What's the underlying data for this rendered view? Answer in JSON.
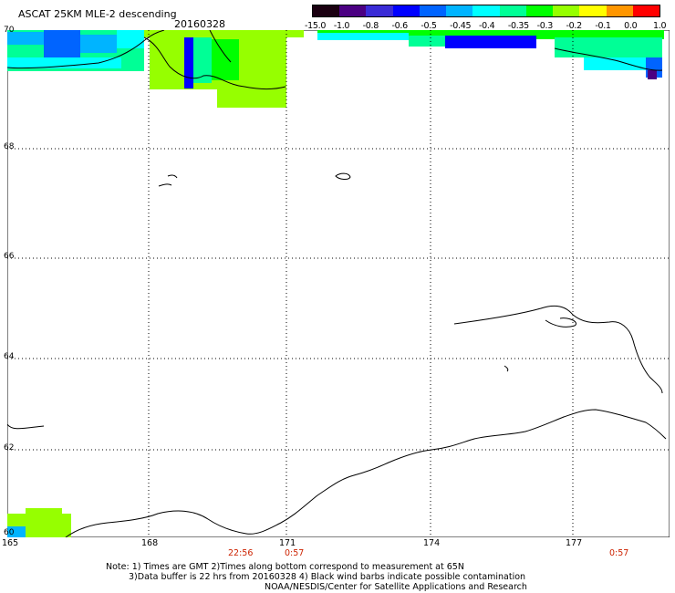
{
  "header": {
    "title": "ASCAT 25KM MLE-2 descending",
    "date": "20160328"
  },
  "legend": {
    "labels": [
      "-15.0",
      "-1.0",
      "-0.8",
      "-0.6",
      "-0.5",
      "-0.45",
      "-0.4",
      "-0.35",
      "-0.3",
      "-0.2",
      "-0.1",
      "0.0",
      "1.0"
    ],
    "colors": [
      "#1a0010",
      "#4b0082",
      "#3a2bd6",
      "#0000ff",
      "#0064ff",
      "#00b4ff",
      "#00ffff",
      "#00ff96",
      "#00ff00",
      "#96ff00",
      "#ffff00",
      "#ff9600",
      "#ff0000"
    ]
  },
  "map": {
    "lat_labels": [
      "70",
      "68",
      "66",
      "64",
      "62",
      "60"
    ],
    "lon_labels": [
      "165",
      "168",
      "171",
      "174",
      "177"
    ],
    "time_labels": [
      "22:56",
      "0:57",
      "0:57"
    ],
    "grid_color": "#000000",
    "coast_color": "#000000",
    "time_color": "#cc2200"
  },
  "notes": {
    "line1": "Note: 1) Times are GMT 2)Times along bottom correspond to measurement at 65N",
    "line2": "3)Data buffer is 22 hrs from 20160328 4) Black wind barbs indicate possible contamination",
    "line3": "NOAA/NESDIS/Center for Satellite Applications and Research"
  }
}
